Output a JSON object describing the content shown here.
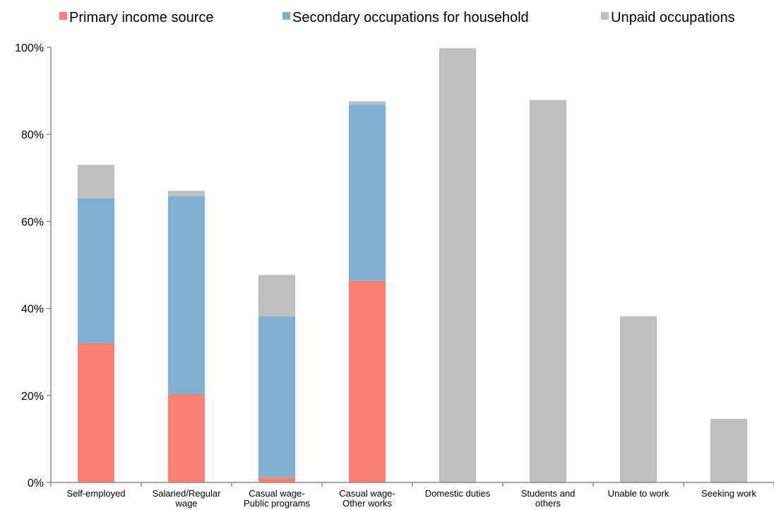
{
  "chart_data": {
    "type": "bar",
    "stacked": true,
    "categories": [
      [
        "Self-employed"
      ],
      [
        "Salaried/Regular",
        "wage"
      ],
      [
        "Casual wage-",
        "Public programs"
      ],
      [
        "Casual wage-",
        "Other works"
      ],
      [
        "Domestic duties"
      ],
      [
        "Students and",
        "others"
      ],
      [
        "Unable to work"
      ],
      [
        "Seeking work"
      ]
    ],
    "series": [
      {
        "name": "Primary income source",
        "color": "#FA8072",
        "values": [
          32,
          20.3,
          1.2,
          46.3,
          0,
          0,
          0,
          0
        ]
      },
      {
        "name": "Secondary occupations for household",
        "color": "#7FB0D3",
        "values": [
          33.3,
          45.5,
          37,
          40.5,
          0,
          0,
          0,
          0
        ]
      },
      {
        "name": "Unpaid occupations",
        "color": "#BFBFBF",
        "values": [
          7.7,
          1.2,
          9.5,
          0.8,
          99.8,
          87.9,
          38.2,
          14.6
        ]
      }
    ],
    "ylim": [
      0,
      100
    ],
    "yticks": [
      0,
      20,
      40,
      60,
      80,
      100
    ],
    "ytick_labels": [
      "0%",
      "20%",
      "40%",
      "60%",
      "80%",
      "100%"
    ],
    "xlabel": "",
    "ylabel": "",
    "legend_position": "top",
    "grid": false
  }
}
